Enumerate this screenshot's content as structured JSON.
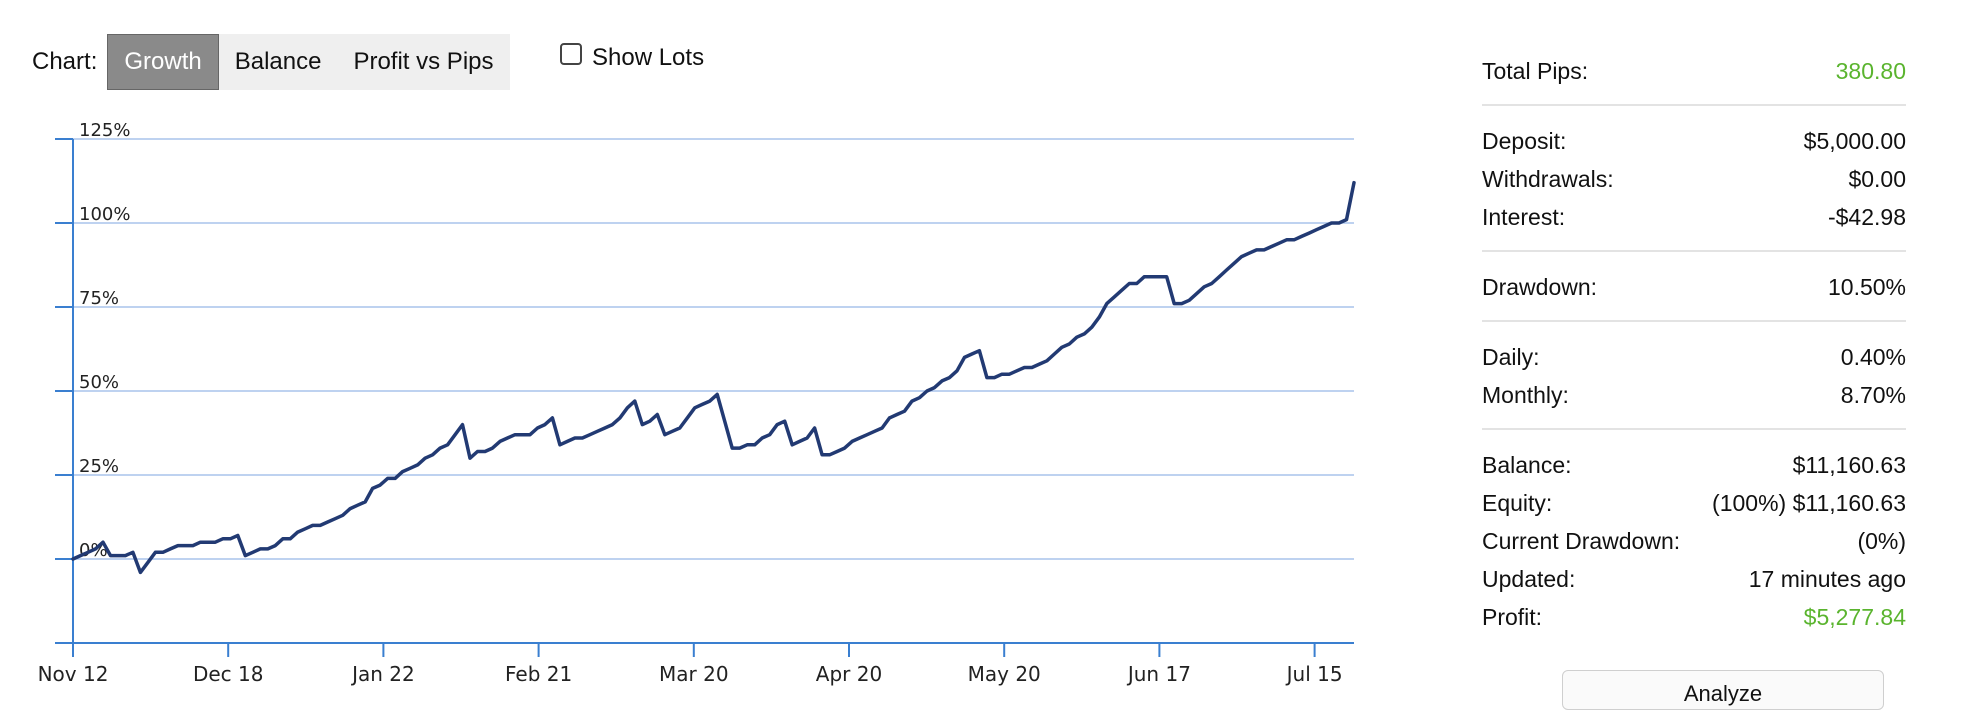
{
  "toolbar": {
    "label": "Chart:",
    "tabs": [
      {
        "label": "Growth",
        "active": true
      },
      {
        "label": "Balance",
        "active": false
      },
      {
        "label": "Profit vs Pips",
        "active": false
      }
    ],
    "show_lots_label": "Show Lots",
    "show_lots_checked": false
  },
  "chart_data": {
    "type": "line",
    "ylim": [
      -25,
      125
    ],
    "y_ticks": [
      0,
      25,
      50,
      75,
      100,
      125
    ],
    "y_tick_labels": [
      "0%",
      "25%",
      "50%",
      "75%",
      "100%",
      "125%"
    ],
    "x_tick_labels": [
      "Nov 12",
      "Dec 18",
      "Jan 22",
      "Feb 21",
      "Mar 20",
      "Apr 20",
      "May 20",
      "Jun 17",
      "Jul 15"
    ],
    "grid": true,
    "line_color": "#223a73",
    "series": [
      {
        "values": [
          0,
          1,
          2,
          3,
          5,
          1,
          1,
          1,
          2,
          -4,
          -1,
          2,
          2,
          3,
          4,
          4,
          4,
          5,
          5,
          5,
          6,
          6,
          7,
          1,
          2,
          3,
          3,
          4,
          6,
          6,
          8,
          9,
          10,
          10,
          11,
          12,
          13,
          15,
          16,
          17,
          21,
          22,
          24,
          24,
          26,
          27,
          28,
          30,
          31,
          33,
          34,
          37,
          40,
          30,
          32,
          32,
          33,
          35,
          36,
          37,
          37,
          37,
          39,
          40,
          42,
          34,
          35,
          36,
          36,
          37,
          38,
          39,
          40,
          42,
          45,
          47,
          40,
          41,
          43,
          37,
          38,
          39,
          42,
          45,
          46,
          47,
          49,
          41,
          33,
          33,
          34,
          34,
          36,
          37,
          40,
          41,
          34,
          35,
          36,
          39,
          31,
          31,
          32,
          33,
          35,
          36,
          37,
          38,
          39,
          42,
          43,
          44,
          47,
          48,
          50,
          51,
          53,
          54,
          56,
          60,
          61,
          62,
          54,
          54,
          55,
          55,
          56,
          57,
          57,
          58,
          59,
          61,
          63,
          64,
          66,
          67,
          69,
          72,
          76,
          78,
          80,
          82,
          82,
          84,
          84,
          84,
          84,
          76,
          76,
          77,
          79,
          81,
          82,
          84,
          86,
          88,
          90,
          91,
          92,
          92,
          93,
          94,
          95,
          95,
          96,
          97,
          98,
          99,
          100,
          100,
          101,
          112
        ]
      }
    ]
  },
  "stats": {
    "total_pips": {
      "label": "Total Pips:",
      "value": "380.80"
    },
    "deposit": {
      "label": "Deposit:",
      "value": "$5,000.00"
    },
    "withdrawals": {
      "label": "Withdrawals:",
      "value": "$0.00"
    },
    "interest": {
      "label": "Interest:",
      "value": "-$42.98"
    },
    "drawdown": {
      "label": "Drawdown:",
      "value": "10.50%"
    },
    "daily": {
      "label": "Daily:",
      "value": "0.40%"
    },
    "monthly": {
      "label": "Monthly:",
      "value": "8.70%"
    },
    "balance": {
      "label": "Balance:",
      "value": "$11,160.63"
    },
    "equity": {
      "label": "Equity:",
      "value": "(100%) $11,160.63"
    },
    "current_drawdown": {
      "label": "Current Drawdown:",
      "value": "(0%)"
    },
    "updated": {
      "label": "Updated:",
      "value": "17 minutes ago"
    },
    "profit": {
      "label": "Profit:",
      "value": "$5,277.84"
    }
  },
  "colors": {
    "positive": "#5ab42e",
    "active_tab": "#8a8a8a",
    "grid": "#a9c4ec",
    "axis": "#3a7fd0"
  },
  "analyze_button": {
    "label": "Analyze"
  }
}
